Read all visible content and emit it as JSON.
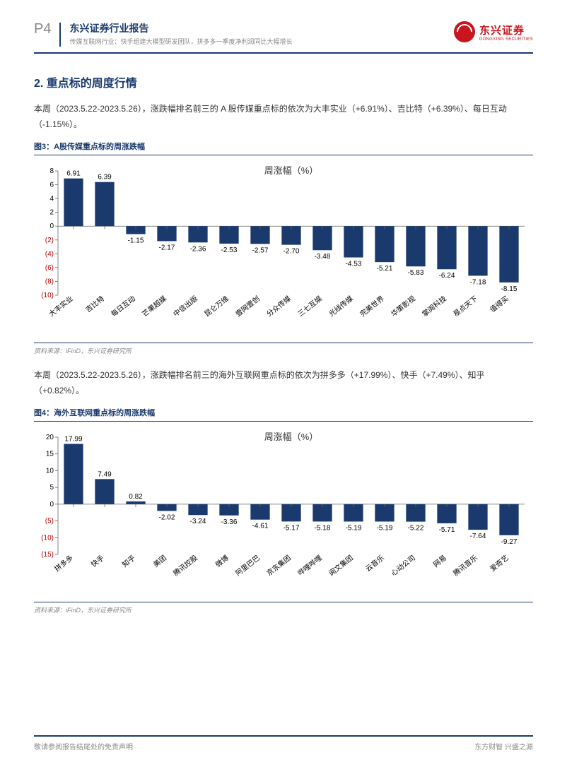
{
  "header": {
    "page_num": "P4",
    "title_main": "东兴证券行业报告",
    "title_sub": "传媒互联网行业：快手组建大模型研发团队，拼多多一季度净利润同比大幅增长",
    "logo_cn": "东兴证券",
    "logo_en": "DONGXING SECURITIES"
  },
  "section": {
    "title": "2. 重点标的周度行情"
  },
  "para1": "本周（2023.5.22-2023.5.26），涨跌幅排名前三的 A 股传媒重点标的依次为大丰实业（+6.91%）、吉比特（+6.39%）、每日互动（-1.15%）。",
  "fig3": {
    "caption": "图3：A股传媒重点标的周涨跌幅",
    "chart": {
      "type": "bar",
      "title": "周涨幅（%）",
      "categories": [
        "大丰实业",
        "吉比特",
        "每日互动",
        "芒果超媒",
        "中信出版",
        "昆仑万维",
        "壹网壹创",
        "分众传媒",
        "三七互娱",
        "光线传媒",
        "完美世界",
        "华策影视",
        "掌阅科技",
        "易点天下",
        "值得买"
      ],
      "values": [
        6.91,
        6.39,
        -1.15,
        -2.17,
        -2.36,
        -2.53,
        -2.57,
        -2.7,
        -3.48,
        -4.53,
        -5.21,
        -5.83,
        -6.24,
        -7.18,
        -8.15
      ],
      "ylim": [
        -10,
        8
      ],
      "yticks": [
        8,
        6,
        4,
        2,
        0,
        -2,
        -4,
        -6,
        -8,
        -10
      ],
      "bar_color": "#1a3a6e",
      "axis_color": "#666",
      "neg_tick_color": "#c00000",
      "pos_tick_color": "#000",
      "title_color": "#333",
      "bg": "#ffffff"
    },
    "source": "资料来源：iFinD，东兴证券研究所"
  },
  "para2": "本周（2023.5.22-2023.5.26），涨跌幅排名前三的海外互联网重点标的依次为拼多多（+17.99%）、快手（+7.49%）、知乎（+0.82%）。",
  "fig4": {
    "caption": "图4：海外互联网重点标的周涨跌幅",
    "chart": {
      "type": "bar",
      "title": "周涨幅（%）",
      "categories": [
        "拼多多",
        "快手",
        "知乎",
        "美团",
        "腾讯控股",
        "微博",
        "阿里巴巴",
        "京东集团",
        "哔哩哔哩",
        "阅文集团",
        "云音乐",
        "心动公司",
        "网易",
        "腾讯音乐",
        "爱奇艺"
      ],
      "values": [
        17.99,
        7.49,
        0.82,
        -2.02,
        -3.24,
        -3.36,
        -4.61,
        -5.17,
        -5.18,
        -5.19,
        -5.19,
        -5.22,
        -5.71,
        -7.64,
        -9.27
      ],
      "ylim": [
        -15,
        20
      ],
      "yticks": [
        20,
        15,
        10,
        5,
        0,
        -5,
        -10,
        -15
      ],
      "bar_color": "#1a3a6e",
      "axis_color": "#666",
      "neg_tick_color": "#c00000",
      "pos_tick_color": "#000",
      "title_color": "#333",
      "bg": "#ffffff"
    },
    "source": "资料来源：iFinD，东兴证券研究所"
  },
  "footer": {
    "left": "敬请参阅报告结尾处的免责声明",
    "right": "东方财智 兴盛之源"
  }
}
